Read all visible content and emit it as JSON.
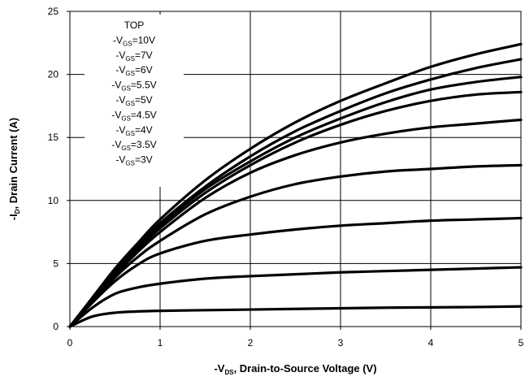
{
  "chart_data": {
    "type": "line",
    "xlabel": "-VDS, Drain-to-Source Voltage (V)",
    "ylabel": "-ID, Drain Current (A)",
    "xlabel_parts": {
      "prefix": "-V",
      "sub": "DS",
      "suffix": ", Drain-to-Source Voltage (V)"
    },
    "ylabel_parts": {
      "prefix": "-I",
      "sub": "D",
      "suffix": ", Drain Current (A)"
    },
    "xlim": [
      0,
      5
    ],
    "ylim": [
      0,
      25
    ],
    "xticks": [
      "0",
      "1",
      "2",
      "3",
      "4",
      "5"
    ],
    "yticks": [
      "0",
      "5",
      "10",
      "15",
      "20",
      "25"
    ],
    "grid": true,
    "legend_placement": "top-left",
    "legend_header": "TOP",
    "legend_entries": [
      {
        "prefix": "-V",
        "sub": "GS",
        "suffix": "=10V"
      },
      {
        "prefix": "-V",
        "sub": "GS",
        "suffix": "=7V"
      },
      {
        "prefix": "-V",
        "sub": "GS",
        "suffix": "=6V"
      },
      {
        "prefix": "-V",
        "sub": "GS",
        "suffix": "=5.5V"
      },
      {
        "prefix": "-V",
        "sub": "GS",
        "suffix": "=5V"
      },
      {
        "prefix": "-V",
        "sub": "GS",
        "suffix": "=4.5V"
      },
      {
        "prefix": "-V",
        "sub": "GS",
        "suffix": "=4V"
      },
      {
        "prefix": "-V",
        "sub": "GS",
        "suffix": "=3.5V"
      },
      {
        "prefix": "-V",
        "sub": "GS",
        "suffix": "=3V"
      }
    ],
    "x": [
      0,
      0.25,
      0.5,
      0.75,
      1,
      1.5,
      2,
      2.5,
      3,
      3.5,
      4,
      4.5,
      5
    ],
    "series": [
      {
        "values": [
          0,
          2.3,
          4.6,
          6.6,
          8.5,
          11.6,
          14.1,
          16.2,
          17.9,
          19.3,
          20.6,
          21.6,
          22.4
        ]
      },
      {
        "values": [
          0,
          2.2,
          4.4,
          6.4,
          8.2,
          11.1,
          13.5,
          15.5,
          17.1,
          18.5,
          19.6,
          20.5,
          21.2
        ]
      },
      {
        "values": [
          0,
          2.2,
          4.3,
          6.2,
          8.0,
          10.9,
          13.1,
          15.0,
          16.5,
          17.8,
          18.8,
          19.4,
          19.8
        ]
      },
      {
        "values": [
          0,
          2.1,
          4.2,
          6.1,
          7.8,
          10.6,
          12.8,
          14.6,
          16.0,
          17.1,
          17.9,
          18.4,
          18.6
        ]
      },
      {
        "values": [
          0,
          2.1,
          4.1,
          5.9,
          7.5,
          10.2,
          12.2,
          13.6,
          14.6,
          15.3,
          15.8,
          16.1,
          16.4
        ]
      },
      {
        "values": [
          0,
          2.0,
          3.9,
          5.5,
          6.8,
          8.9,
          10.3,
          11.3,
          11.9,
          12.3,
          12.5,
          12.7,
          12.8
        ]
      },
      {
        "values": [
          0,
          1.9,
          3.6,
          4.9,
          5.8,
          6.8,
          7.3,
          7.7,
          8.0,
          8.2,
          8.4,
          8.5,
          8.6
        ]
      },
      {
        "values": [
          0,
          1.5,
          2.6,
          3.1,
          3.4,
          3.8,
          4.0,
          4.15,
          4.3,
          4.4,
          4.5,
          4.6,
          4.7
        ]
      },
      {
        "values": [
          0,
          0.8,
          1.1,
          1.2,
          1.25,
          1.3,
          1.35,
          1.4,
          1.45,
          1.5,
          1.52,
          1.55,
          1.6
        ]
      }
    ]
  }
}
